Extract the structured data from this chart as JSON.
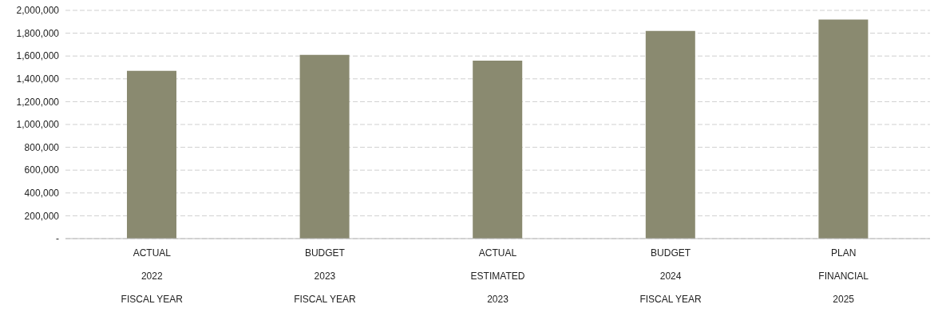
{
  "chart_data": {
    "type": "bar",
    "categories": [
      "ACTUAL\n2022\nFISCAL YEAR",
      "BUDGET\n2023\nFISCAL YEAR",
      "ACTUAL\nESTIMATED\n2023",
      "BUDGET\n2024\nFISCAL YEAR",
      "PLAN\nFINANCIAL\n2025"
    ],
    "values": [
      1470000,
      1610000,
      1560000,
      1820000,
      1920000
    ],
    "color": "#8a8a70",
    "ylim": [
      0,
      2000000
    ],
    "yticks": [
      {
        "value": 0,
        "label": "-"
      },
      {
        "value": 200000,
        "label": "200,000"
      },
      {
        "value": 400000,
        "label": "400,000"
      },
      {
        "value": 600000,
        "label": "600,000"
      },
      {
        "value": 800000,
        "label": "800,000"
      },
      {
        "value": 1000000,
        "label": "1,000,000"
      },
      {
        "value": 1200000,
        "label": "1,200,000"
      },
      {
        "value": 1400000,
        "label": "1,400,000"
      },
      {
        "value": 1600000,
        "label": "1,600,000"
      },
      {
        "value": 1800000,
        "label": "1,800,000"
      },
      {
        "value": 2000000,
        "label": "2,000,000"
      }
    ],
    "grid": "y"
  }
}
